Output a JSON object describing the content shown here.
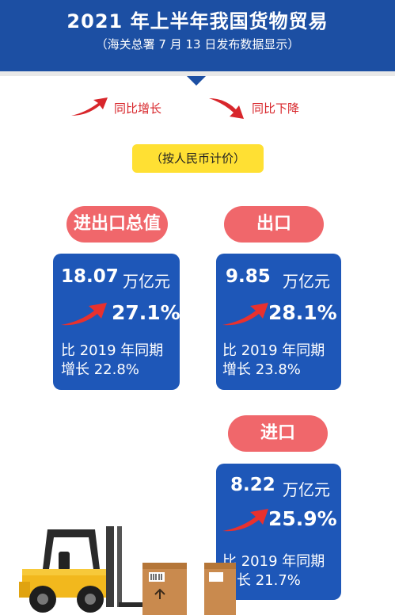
{
  "header": {
    "title": "2021 年上半年我国货物贸易",
    "subtitle": "（海关总署 7 月 13 日发布数据显示）"
  },
  "legend": {
    "up_label": "同比增长",
    "down_label": "同比下降"
  },
  "unit_note": "（按人民币计价）",
  "cards": {
    "total": {
      "title": "进出口总值",
      "value": "18.07",
      "unit": "万亿元",
      "growth": "27.1%",
      "compare_line1": "比 2019 年同期",
      "compare_line2": "增长 22.8%"
    },
    "export": {
      "title": "出口",
      "value": "9.85",
      "unit": "万亿元",
      "growth": "28.1%",
      "compare_line1": "比 2019 年同期",
      "compare_line2": "增长 23.8%"
    },
    "import": {
      "title": "进口",
      "value": "8.22",
      "unit": "万亿元",
      "growth": "25.9%",
      "compare_line1": "比 2019 年同期",
      "compare_line2": "增长 21.7%"
    }
  },
  "icons": {
    "up_arrow": "trend-up-arrow-icon",
    "down_arrow": "trend-down-arrow-icon",
    "forklift": "forklift-icon",
    "box": "cardboard-box-icon"
  },
  "colors": {
    "header_blue": "#1c4fa3",
    "card_blue": "#1e57b8",
    "pill_red": "#f0676b",
    "arrow_red": "#d8262b",
    "note_yellow": "#ffe033"
  }
}
